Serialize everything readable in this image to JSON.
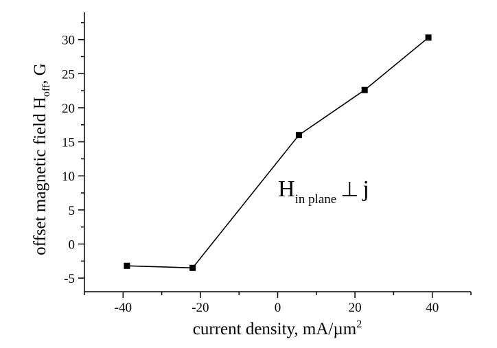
{
  "chart_data": {
    "type": "line",
    "xlabel": "current density, mA/µm",
    "xlabel_sup": "2",
    "ylabel": "offset magnetic field H",
    "ylabel_sub": "off",
    "ylabel_unit": ", G",
    "annotation": {
      "main": "H",
      "sub": "in plane",
      "relation": "⊥",
      "suffix": "j"
    },
    "xlim": [
      -50,
      50
    ],
    "ylim": [
      -7,
      34
    ],
    "x_ticks": [
      -40,
      -20,
      0,
      20,
      40
    ],
    "y_ticks": [
      -5,
      0,
      5,
      10,
      15,
      20,
      25,
      30
    ],
    "grid": false,
    "series": [
      {
        "marker": "square",
        "color": "#000000",
        "points": [
          {
            "x": -39,
            "y": -3.2
          },
          {
            "x": -22,
            "y": -3.5
          },
          {
            "x": 5.5,
            "y": 16.0
          },
          {
            "x": 22.5,
            "y": 22.6
          },
          {
            "x": 39,
            "y": 30.3
          }
        ]
      }
    ]
  }
}
